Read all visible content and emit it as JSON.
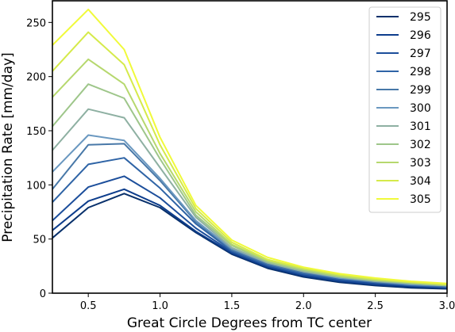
{
  "chart_data": {
    "type": "line",
    "xlabel": "Great Circle Degrees from TC center",
    "ylabel": "Precipitation Rate [mm/day]",
    "xlim": [
      0.25,
      3.0
    ],
    "ylim": [
      0,
      270
    ],
    "xticks": [
      "0.5",
      "1.0",
      "1.5",
      "2.0",
      "2.5",
      "3.0"
    ],
    "yticks": [
      "0",
      "50",
      "100",
      "150",
      "200",
      "250"
    ],
    "legend_position": "top-right",
    "grid": false,
    "x": [
      0.25,
      0.5,
      0.75,
      1.0,
      1.25,
      1.5,
      1.75,
      2.0,
      2.25,
      2.5,
      2.75,
      3.0
    ],
    "series": [
      {
        "name": "295",
        "color": "#08306b",
        "values": [
          51,
          79,
          92,
          79,
          56,
          36,
          23,
          15,
          10,
          7,
          5,
          4
        ]
      },
      {
        "name": "296",
        "color": "#0d3d8c",
        "values": [
          58,
          85,
          96,
          81,
          57,
          37,
          24,
          16,
          11,
          8,
          6,
          5
        ]
      },
      {
        "name": "297",
        "color": "#1c4e9b",
        "values": [
          67,
          98,
          108,
          88,
          60,
          38,
          25,
          17,
          12,
          9,
          7,
          5
        ]
      },
      {
        "name": "298",
        "color": "#2f64a6",
        "values": [
          84,
          119,
          125,
          97,
          64,
          39,
          26,
          18,
          13,
          10,
          7,
          6
        ]
      },
      {
        "name": "299",
        "color": "#4878a8",
        "values": [
          96,
          137,
          138,
          104,
          66,
          40,
          27,
          19,
          14,
          10,
          8,
          6
        ]
      },
      {
        "name": "300",
        "color": "#6a98c0",
        "values": [
          112,
          146,
          141,
          106,
          67,
          41,
          28,
          20,
          14,
          11,
          8,
          7
        ]
      },
      {
        "name": "301",
        "color": "#8eb0a2",
        "values": [
          132,
          170,
          162,
          116,
          70,
          42,
          28,
          20,
          15,
          11,
          9,
          7
        ]
      },
      {
        "name": "302",
        "color": "#9ec68a",
        "values": [
          154,
          193,
          180,
          124,
          72,
          44,
          29,
          21,
          15,
          12,
          9,
          7
        ]
      },
      {
        "name": "303",
        "color": "#b6d86e",
        "values": [
          181,
          216,
          193,
          129,
          75,
          45,
          30,
          22,
          16,
          12,
          10,
          8
        ]
      },
      {
        "name": "304",
        "color": "#d5ea4a",
        "values": [
          205,
          241,
          211,
          137,
          78,
          47,
          31,
          23,
          17,
          13,
          10,
          8
        ]
      },
      {
        "name": "305",
        "color": "#f0fa3a",
        "values": [
          229,
          262,
          225,
          144,
          81,
          49,
          33,
          24,
          18,
          14,
          11,
          9
        ]
      }
    ]
  }
}
